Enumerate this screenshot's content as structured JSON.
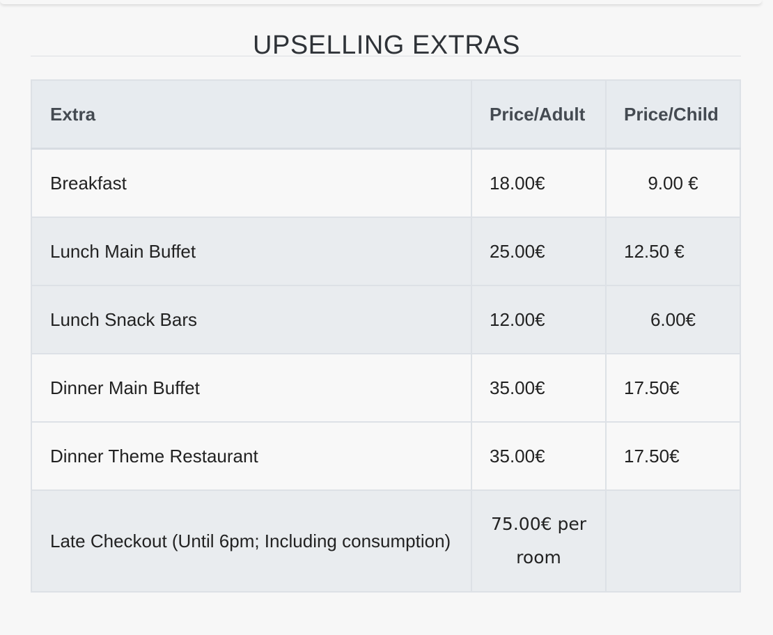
{
  "heading": "UPSELLING EXTRAS",
  "table": {
    "headers": [
      "Extra",
      "Price/Adult",
      "Price/Child"
    ],
    "rows": [
      {
        "extra": "Breakfast",
        "adult": "18.00€",
        "child": "9.00 €"
      },
      {
        "extra": "Lunch Main Buffet",
        "adult": "25.00€",
        "child": "12.50 €"
      },
      {
        "extra": "Lunch Snack Bars",
        "adult": "12.00€",
        "child": "6.00€"
      },
      {
        "extra": "Dinner Main Buffet",
        "adult": "35.00€",
        "child": "17.50€"
      },
      {
        "extra": "Dinner Theme Restaurant",
        "adult": "35.00€",
        "child": "17.50€"
      },
      {
        "extra": "Late Checkout (Until 6pm; Including consumption)",
        "adult": "75.00€ per room",
        "child": ""
      }
    ]
  }
}
